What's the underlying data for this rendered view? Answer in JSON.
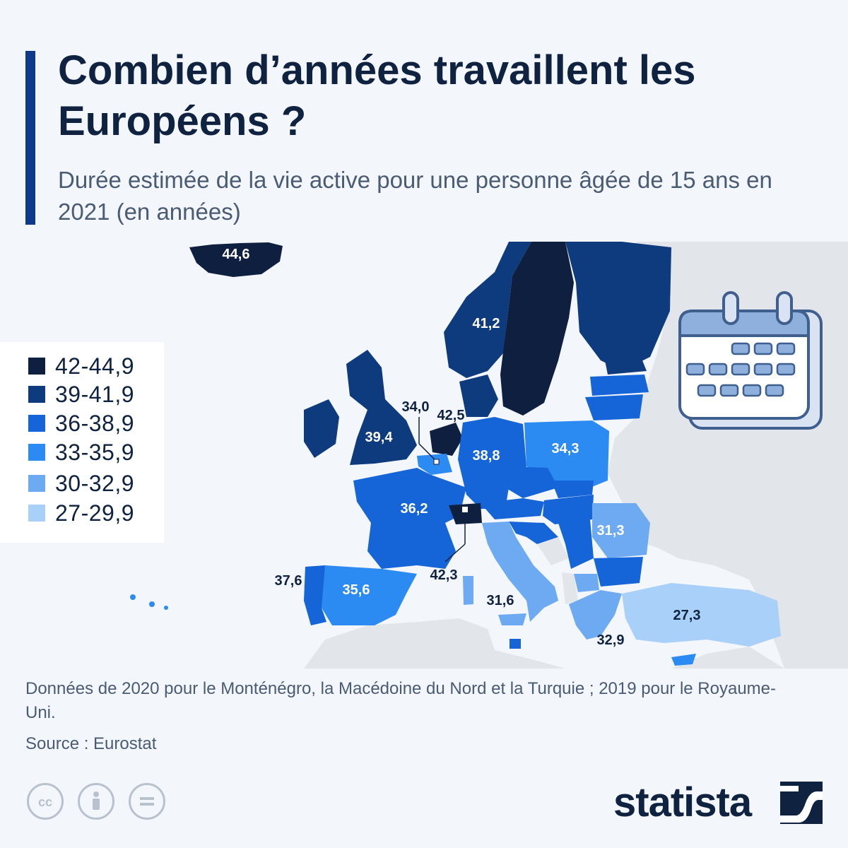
{
  "title": "Combien d’années travaillent les Européens ?",
  "subtitle": "Durée estimée de la vie active pour une personne âgée de 15 ans en 2021 (en années)",
  "legend": [
    {
      "label": "42-44,9",
      "color": "#0e1f3f"
    },
    {
      "label": "39-41,9",
      "color": "#0e3a7e"
    },
    {
      "label": "36-38,9",
      "color": "#1565d8"
    },
    {
      "label": "33-35,9",
      "color": "#2c8bf2"
    },
    {
      "label": "30-32,9",
      "color": "#6eaaf2"
    },
    {
      "label": "27-29,9",
      "color": "#a9d0f8"
    }
  ],
  "map_labels": {
    "iceland": "44,6",
    "norway": "41,2",
    "uk": "39,4",
    "belgium": "34,0",
    "netherlands": "42,5",
    "germany": "38,8",
    "poland": "34,3",
    "france": "36,2",
    "switzerland": "42,3",
    "romania": "31,3",
    "portugal": "37,6",
    "spain": "35,6",
    "italy": "31,6",
    "turkey": "27,3",
    "greece": "32,9"
  },
  "colors": {
    "sea": "#f3f6fa",
    "land_nodata": "#e2e5ea",
    "text_dark": "#0f2240",
    "text_light": "#ffffff"
  },
  "icons": [
    "calendar-icon",
    "cc-icon",
    "attribution-icon",
    "no-derivatives-icon",
    "statista-logo-icon"
  ],
  "note": "Données de 2020 pour le Monténégro, la Macédoine du Nord et la Turquie ; 2019 pour le Royaume-Uni.",
  "source": "Source : Eurostat",
  "brand": "statista"
}
